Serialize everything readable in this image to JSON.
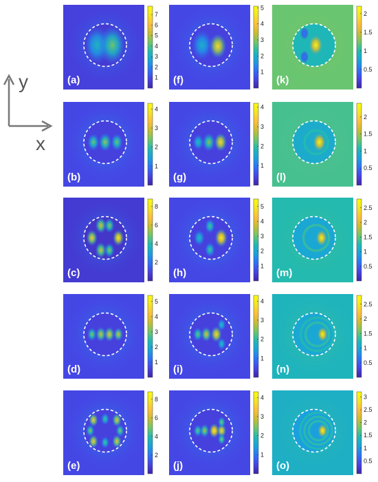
{
  "axes": {
    "y_label": "y",
    "x_label": "x"
  },
  "colormap": [
    "#3e26a8",
    "#4743e3",
    "#2e72f7",
    "#1aa1dd",
    "#20b9b3",
    "#6ec66c",
    "#c7bd33",
    "#fcbe3c",
    "#f4e524",
    "#f9fb0e"
  ],
  "panels": [
    {
      "label": "(a)",
      "col": 0,
      "row": 0,
      "ticks": [
        "1",
        "2",
        "3",
        "4",
        "5",
        "6",
        "7"
      ],
      "max": 7.8,
      "bg": 0.1,
      "halo": 0.16,
      "lobes": [
        [
          -0.38,
          0,
          0.42,
          0.62
        ],
        [
          0.34,
          0,
          0.55,
          0.62
        ]
      ],
      "rings": []
    },
    {
      "label": "(b)",
      "col": 0,
      "row": 1,
      "ticks": [
        "1",
        "2",
        "3",
        "4"
      ],
      "max": 4.3,
      "bg": 0.12,
      "halo": 0.18,
      "lobes": [
        [
          -0.55,
          0,
          0.55,
          0.28
        ],
        [
          0,
          0,
          0.62,
          0.3
        ],
        [
          0.55,
          0,
          0.55,
          0.28
        ]
      ],
      "rings": []
    },
    {
      "label": "(c)",
      "col": 0,
      "row": 2,
      "ticks": [
        "2",
        "4",
        "6",
        "8"
      ],
      "max": 8.8,
      "bg": 0.08,
      "halo": 0.14,
      "lobes": [
        [
          -0.62,
          0,
          0.8,
          0.26
        ],
        [
          0.62,
          0,
          0.9,
          0.26
        ],
        [
          -0.2,
          -0.58,
          0.7,
          0.26
        ],
        [
          -0.2,
          0.58,
          0.7,
          0.26
        ],
        [
          0.2,
          -0.58,
          0.6,
          0.24
        ],
        [
          0.2,
          0.58,
          0.6,
          0.24
        ]
      ],
      "rings": []
    },
    {
      "label": "(d)",
      "col": 0,
      "row": 3,
      "ticks": [
        "1",
        "2",
        "3",
        "4",
        "5"
      ],
      "max": 5.4,
      "bg": 0.12,
      "halo": 0.17,
      "lobes": [
        [
          -0.62,
          0,
          0.6,
          0.22
        ],
        [
          -0.2,
          0,
          0.7,
          0.24
        ],
        [
          0.2,
          0,
          0.75,
          0.24
        ],
        [
          0.62,
          0,
          0.7,
          0.22
        ]
      ],
      "rings": []
    },
    {
      "label": "(e)",
      "col": 0,
      "row": 4,
      "ticks": [
        "2",
        "4",
        "6",
        "8"
      ],
      "max": 8.8,
      "bg": 0.12,
      "halo": 0.18,
      "lobes": [
        [
          -0.55,
          -0.5,
          0.8,
          0.22
        ],
        [
          -0.55,
          0.5,
          0.8,
          0.22
        ],
        [
          0.55,
          -0.5,
          0.75,
          0.22
        ],
        [
          0.55,
          0.5,
          0.75,
          0.22
        ],
        [
          0,
          -0.55,
          0.5,
          0.2
        ],
        [
          0,
          0.55,
          0.5,
          0.2
        ],
        [
          -0.7,
          0,
          0.6,
          0.2
        ],
        [
          0.7,
          0,
          0.6,
          0.2
        ]
      ],
      "rings": []
    },
    {
      "label": "(f)",
      "col": 1,
      "row": 0,
      "ticks": [
        "1",
        "2",
        "3",
        "4",
        "5"
      ],
      "max": 5.1,
      "bg": 0.12,
      "halo": 0.16,
      "lobes": [
        [
          -0.42,
          0,
          0.4,
          0.5
        ],
        [
          0.32,
          0.05,
          0.85,
          0.4
        ]
      ],
      "rings": []
    },
    {
      "label": "(g)",
      "col": 1,
      "row": 1,
      "ticks": [
        "1",
        "2",
        "3",
        "4"
      ],
      "max": 4.2,
      "bg": 0.12,
      "halo": 0.18,
      "lobes": [
        [
          -0.6,
          0,
          0.45,
          0.26
        ],
        [
          -0.1,
          0,
          0.6,
          0.3
        ],
        [
          0.45,
          0,
          0.85,
          0.3
        ]
      ],
      "rings": []
    },
    {
      "label": "(h)",
      "col": 1,
      "row": 2,
      "ticks": [
        "1",
        "2",
        "3",
        "4",
        "5"
      ],
      "max": 5.5,
      "bg": 0.12,
      "halo": 0.18,
      "lobes": [
        [
          -0.55,
          0,
          0.45,
          0.26
        ],
        [
          -0.05,
          -0.55,
          0.5,
          0.24
        ],
        [
          -0.05,
          0.55,
          0.5,
          0.24
        ],
        [
          0.48,
          0,
          0.95,
          0.3
        ]
      ],
      "rings": []
    },
    {
      "label": "(i)",
      "col": 1,
      "row": 3,
      "ticks": [
        "1",
        "2",
        "3",
        "4"
      ],
      "max": 4.3,
      "bg": 0.12,
      "halo": 0.18,
      "lobes": [
        [
          -0.62,
          0,
          0.55,
          0.22
        ],
        [
          -0.22,
          0,
          0.72,
          0.24
        ],
        [
          0.25,
          0,
          0.85,
          0.26
        ],
        [
          0.5,
          -0.45,
          0.45,
          0.2
        ],
        [
          0.5,
          0.45,
          0.45,
          0.2
        ]
      ],
      "rings": []
    },
    {
      "label": "(j)",
      "col": 1,
      "row": 4,
      "ticks": [
        "1",
        "2",
        "3",
        "4"
      ],
      "max": 4.3,
      "bg": 0.12,
      "halo": 0.18,
      "lobes": [
        [
          -0.62,
          0,
          0.55,
          0.2
        ],
        [
          -0.3,
          0,
          0.65,
          0.22
        ],
        [
          0.15,
          0,
          0.95,
          0.24
        ],
        [
          0.5,
          0,
          0.85,
          0.22
        ],
        [
          0.5,
          -0.4,
          0.6,
          0.18
        ],
        [
          0.5,
          0.4,
          0.6,
          0.18
        ]
      ],
      "rings": []
    },
    {
      "label": "(k)",
      "col": 2,
      "row": 0,
      "ticks": [
        "0.5",
        "1",
        "1.5",
        "2"
      ],
      "max": 2.2,
      "bg": 0.55,
      "halo": 0.45,
      "lobes": [
        [
          0.08,
          0,
          0.95,
          0.35
        ],
        [
          -0.45,
          -0.55,
          0.25,
          0.2
        ],
        [
          -0.45,
          0.55,
          0.25,
          0.2
        ]
      ],
      "rings": []
    },
    {
      "label": "(l)",
      "col": 2,
      "row": 1,
      "ticks": [
        "0.5",
        "1",
        "1.5",
        "2"
      ],
      "max": 2.4,
      "bg": 0.5,
      "halo": 0.4,
      "lobes": [
        [
          0.25,
          0,
          0.95,
          0.32
        ]
      ],
      "rings": [
        [
          0.1,
          0.55,
          0.25
        ]
      ]
    },
    {
      "label": "(m)",
      "col": 2,
      "row": 2,
      "ticks": [
        "0.5",
        "1",
        "1.5",
        "2",
        "2.5"
      ],
      "max": 2.8,
      "bg": 0.45,
      "halo": 0.38,
      "lobes": [
        [
          0.35,
          0,
          0.95,
          0.28
        ]
      ],
      "rings": [
        [
          0.1,
          0.6,
          0.3
        ]
      ]
    },
    {
      "label": "(n)",
      "col": 2,
      "row": 3,
      "ticks": [
        "0.5",
        "1",
        "1.5",
        "2",
        "2.5"
      ],
      "max": 2.8,
      "bg": 0.42,
      "halo": 0.38,
      "lobes": [
        [
          0.4,
          0,
          0.95,
          0.26
        ]
      ],
      "rings": [
        [
          0.15,
          0.55,
          0.3
        ],
        [
          0.15,
          0.78,
          0.28
        ]
      ]
    },
    {
      "label": "(o)",
      "col": 2,
      "row": 4,
      "ticks": [
        "0.5",
        "1",
        "1.5",
        "2",
        "2.5",
        "3"
      ],
      "max": 3.2,
      "bg": 0.4,
      "halo": 0.35,
      "lobes": [
        [
          0.4,
          0,
          0.95,
          0.24
        ]
      ],
      "rings": [
        [
          0.2,
          0.45,
          0.3
        ],
        [
          0.2,
          0.65,
          0.3
        ],
        [
          0.2,
          0.85,
          0.28
        ]
      ]
    }
  ]
}
